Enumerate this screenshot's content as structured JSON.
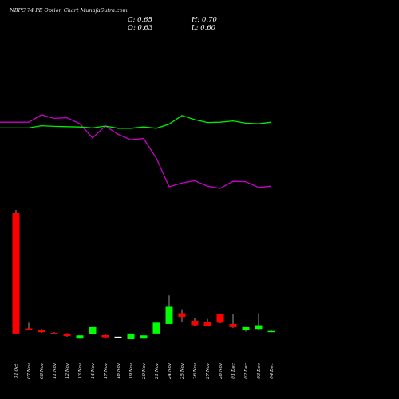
{
  "header": {
    "title": "NBPC 74  PE Option  Chart MunafaSutra.com",
    "close": "C: 0.65",
    "open": "O: 0.63",
    "high": "H: 0.70",
    "low": "L: 0.60"
  },
  "colors": {
    "background": "#000000",
    "up": "#00ff00",
    "down": "#ff0000",
    "neutral": "#ffffff",
    "green_line": "#00ee00",
    "magenta_line": "#cc00cc"
  },
  "chart_data": {
    "type": "candlestick",
    "title": "NBPC 74  PE Option  Chart MunafaSutra.com",
    "x_tick_labels": [
      "31 Oct",
      "07 Nov",
      "08 Nov",
      "11 Nov",
      "12 Nov",
      "13 Nov",
      "14 Nov",
      "17 Nov",
      "18 Nov",
      "19 Nov",
      "20 Nov",
      "21 Nov",
      "24 Nov",
      "25 Nov",
      "26 Nov",
      "27 Nov",
      "28 Nov",
      "01 Dec",
      "02 Dec",
      "03 Dec",
      "04 Dec"
    ],
    "ohlc": [
      {
        "o": 9.95,
        "h": 10.2,
        "l": 0.45,
        "c": 0.45,
        "color": "down"
      },
      {
        "o": 0.85,
        "h": 1.3,
        "l": 0.7,
        "c": 0.75,
        "color": "down"
      },
      {
        "o": 0.7,
        "h": 0.8,
        "l": 0.5,
        "c": 0.55,
        "color": "down"
      },
      {
        "o": 0.5,
        "h": 0.55,
        "l": 0.48,
        "c": 0.5,
        "color": "down"
      },
      {
        "o": 0.45,
        "h": 0.48,
        "l": 0.2,
        "c": 0.25,
        "color": "down"
      },
      {
        "o": 0.05,
        "h": 0.3,
        "l": 0.05,
        "c": 0.3,
        "color": "up"
      },
      {
        "o": 0.4,
        "h": 0.95,
        "l": 0.4,
        "c": 0.95,
        "color": "up"
      },
      {
        "o": 0.32,
        "h": 0.4,
        "l": 0.12,
        "c": 0.15,
        "color": "down"
      },
      {
        "o": 0.2,
        "h": 0.2,
        "l": 0.2,
        "c": 0.2,
        "color": "neutral"
      },
      {
        "o": 0.0,
        "h": 0.45,
        "l": 0.0,
        "c": 0.45,
        "color": "up"
      },
      {
        "o": 0.05,
        "h": 0.3,
        "l": 0.05,
        "c": 0.3,
        "color": "up"
      },
      {
        "o": 0.45,
        "h": 1.3,
        "l": 0.45,
        "c": 1.3,
        "color": "up"
      },
      {
        "o": 1.2,
        "h": 3.45,
        "l": 1.2,
        "c": 2.55,
        "color": "up"
      },
      {
        "o": 2.05,
        "h": 2.35,
        "l": 1.35,
        "c": 1.75,
        "color": "down"
      },
      {
        "o": 1.45,
        "h": 1.65,
        "l": 1.05,
        "c": 1.1,
        "color": "down"
      },
      {
        "o": 1.35,
        "h": 1.6,
        "l": 1.0,
        "c": 1.05,
        "color": "down"
      },
      {
        "o": 1.95,
        "h": 1.95,
        "l": 1.25,
        "c": 1.3,
        "color": "down"
      },
      {
        "o": 1.2,
        "h": 1.95,
        "l": 0.9,
        "c": 0.95,
        "color": "down"
      },
      {
        "o": 0.7,
        "h": 0.95,
        "l": 0.6,
        "c": 0.95,
        "color": "up"
      },
      {
        "o": 0.8,
        "h": 2.05,
        "l": 0.75,
        "c": 1.1,
        "color": "up"
      },
      {
        "o": 0.63,
        "h": 0.7,
        "l": 0.6,
        "c": 0.65,
        "color": "up"
      }
    ],
    "green_line": [
      0.59,
      0.59,
      0.66,
      0.64,
      0.63,
      0.62,
      0.59,
      0.65,
      0.58,
      0.58,
      0.62,
      0.58,
      0.71,
      0.98,
      0.85,
      0.76,
      0.77,
      0.81,
      0.74,
      0.72,
      0.77
    ],
    "magenta_line": [
      0.77,
      0.77,
      1.0,
      0.89,
      0.91,
      0.72,
      0.28,
      0.65,
      0.39,
      0.22,
      0.26,
      -0.36,
      -1.25,
      -1.13,
      -1.06,
      -1.23,
      -1.3,
      -1.08,
      -1.09,
      -1.27,
      -1.23
    ],
    "ylim_price": [
      0,
      10.2
    ],
    "ylim_lines": [
      -1.6,
      1.4
    ],
    "grid": false,
    "legend": "none"
  }
}
